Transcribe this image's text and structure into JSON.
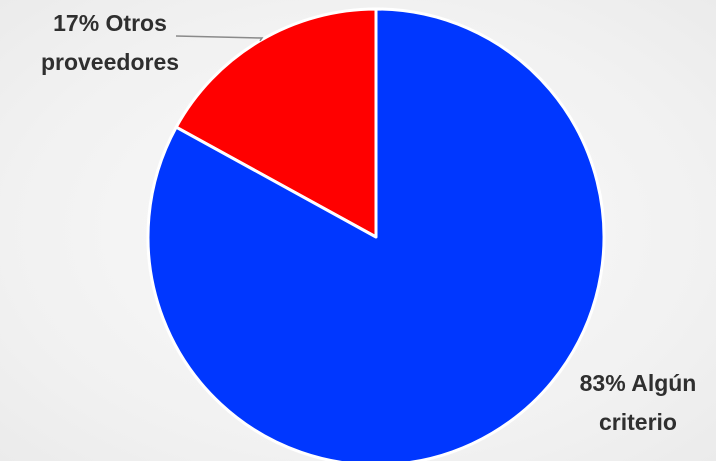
{
  "chart_data": {
    "type": "pie",
    "title": "",
    "slices": [
      {
        "label": "Otros proveedores",
        "value": 17,
        "color": "#ff0000",
        "data_label": [
          "17% Otros",
          "proveedores"
        ]
      },
      {
        "label": "Algún criterio",
        "value": 83,
        "color": "#0037ff",
        "data_label": [
          "83% Algún",
          "criterio"
        ]
      }
    ],
    "start_angle": "12 o'clock",
    "direction": "counter-clockwise",
    "legend": "none",
    "slice_border_color": "#ffffff",
    "leader_line_color": "#8a8a8a"
  }
}
